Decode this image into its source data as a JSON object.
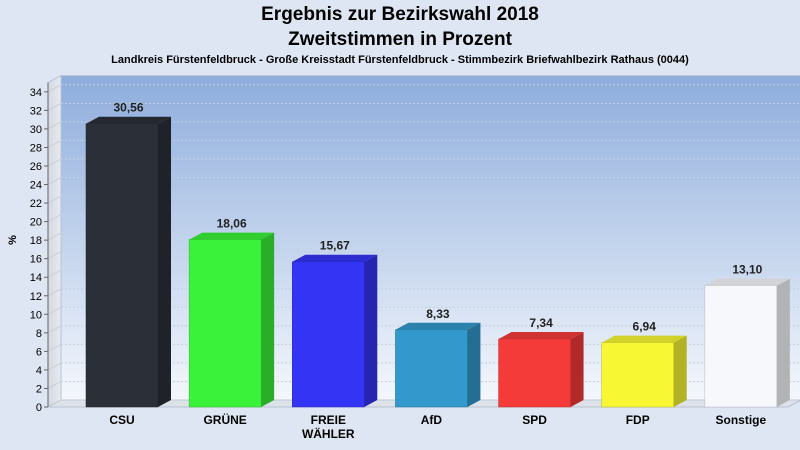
{
  "header": {
    "title": "Ergebnis zur Bezirkswahl 2018",
    "subtitle": "Zweitstimmen in Prozent",
    "location": "Landkreis Fürstenfeldbruck - Große Kreisstadt Fürstenfeldbruck - Stimmbezirk Briefwahlbezirk Rathaus (0044)"
  },
  "chart_data": {
    "type": "bar",
    "title": "Ergebnis zur Bezirkswahl 2018",
    "subtitle": "Zweitstimmen in Prozent",
    "ylabel": "%",
    "xlabel": "",
    "ylim": [
      0,
      35
    ],
    "yticks": [
      0,
      2,
      4,
      6,
      8,
      10,
      12,
      14,
      16,
      18,
      20,
      22,
      24,
      26,
      28,
      30,
      32,
      34
    ],
    "categories": [
      "CSU",
      "GRÜNE",
      "FREIE WÄHLER",
      "AfD",
      "SPD",
      "FDP",
      "Sonstige"
    ],
    "category_lines": [
      [
        "CSU"
      ],
      [
        "GRÜNE"
      ],
      [
        "FREIE",
        "WÄHLER"
      ],
      [
        "AfD"
      ],
      [
        "SPD"
      ],
      [
        "FDP"
      ],
      [
        "Sonstige"
      ]
    ],
    "values": [
      30.56,
      18.06,
      15.67,
      8.33,
      7.34,
      6.94,
      13.1
    ],
    "value_labels": [
      "30,56",
      "18,06",
      "15,67",
      "8,33",
      "7,34",
      "6,94",
      "13,10"
    ],
    "colors": [
      "#2b2f38",
      "#3af23a",
      "#3434f5",
      "#3399cc",
      "#f53a3a",
      "#f7f733",
      "#f7f8fc"
    ],
    "grid": true,
    "legend": "none"
  }
}
